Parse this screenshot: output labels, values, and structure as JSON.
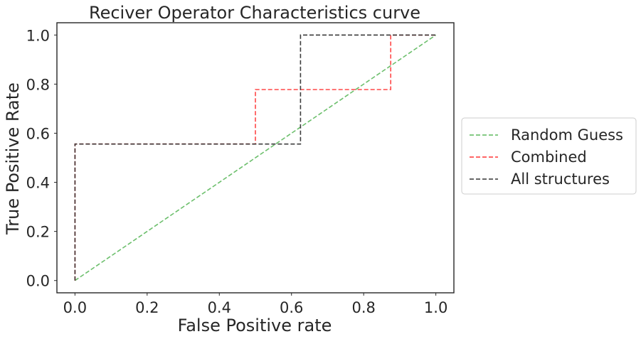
{
  "chart_data": {
    "type": "line",
    "title": "Reciver Operator Characteristics curve",
    "xlabel": "False Positive rate",
    "ylabel": "True Positive Rate",
    "xlim": [
      -0.05,
      1.05
    ],
    "ylim": [
      -0.05,
      1.05
    ],
    "xticks": [
      "0.0",
      "0.2",
      "0.4",
      "0.6",
      "0.8",
      "1.0"
    ],
    "yticks": [
      "0.0",
      "0.2",
      "0.4",
      "0.6",
      "0.8",
      "1.0"
    ],
    "grid": false,
    "legend_position": "center-right-outside",
    "series": [
      {
        "name": "Random Guess",
        "color": "#5cb85c",
        "style": "dashed",
        "x": [
          0,
          1
        ],
        "y": [
          0,
          1
        ]
      },
      {
        "name": "Combined",
        "color": "#ff3333",
        "style": "dashed",
        "x": [
          0,
          0,
          0.5,
          0.5,
          0.875,
          0.875,
          1.0
        ],
        "y": [
          0,
          0.556,
          0.556,
          0.778,
          0.778,
          1.0,
          1.0
        ]
      },
      {
        "name": "All structures",
        "color": "#333333",
        "style": "dashed",
        "x": [
          0,
          0,
          0.625,
          0.625,
          1.0
        ],
        "y": [
          0,
          0.556,
          0.556,
          1.0,
          1.0
        ]
      }
    ]
  }
}
